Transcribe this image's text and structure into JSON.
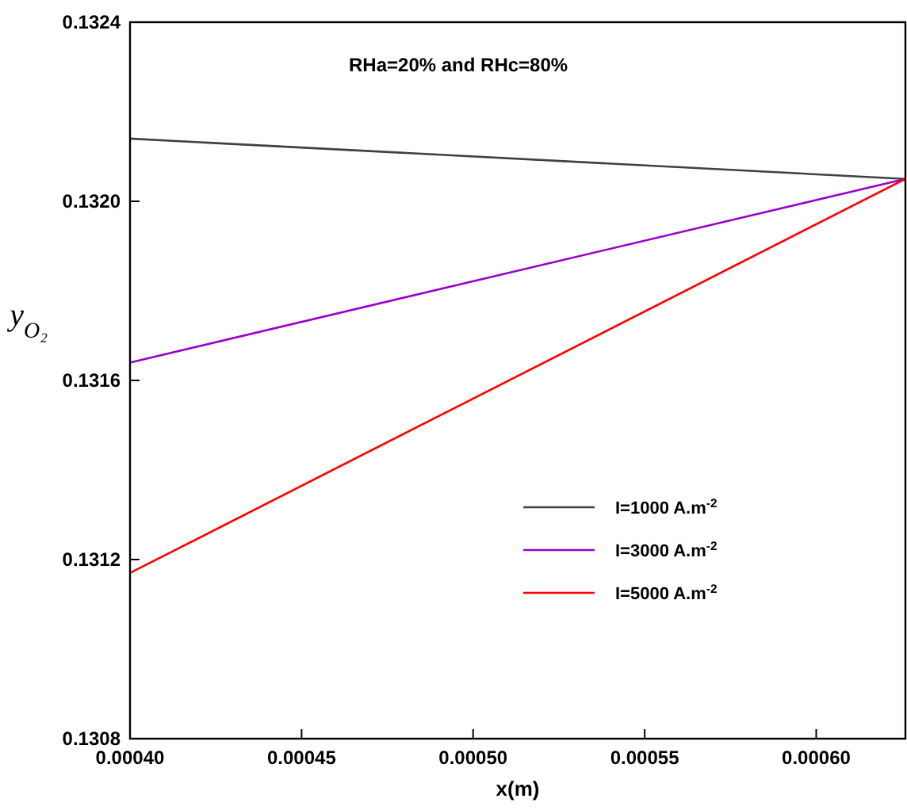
{
  "chart_data": {
    "type": "line",
    "xlabel": "x(m)",
    "ylabel": "y$_{O₂}$",
    "annotations": [
      "RHa=20% and RHc=80%"
    ],
    "x": [
      0.0004,
      0.000626
    ],
    "xlim": [
      0.0004,
      0.000626
    ],
    "xticks": [
      {
        "value": 0.0004,
        "label": "0.00040"
      },
      {
        "value": 0.00045,
        "label": "0.00045"
      },
      {
        "value": 0.0005,
        "label": "0.00050"
      },
      {
        "value": 0.00055,
        "label": "0.00055"
      },
      {
        "value": 0.0006,
        "label": "0.00060"
      }
    ],
    "ylim": [
      0.1308,
      0.1324
    ],
    "yticks": [
      0.1308,
      0.1312,
      0.1316,
      {
        "value": 0.132,
        "label": "0.1320"
      },
      0.1324
    ],
    "series": [
      {
        "name": "I=1000 A.m$^{-2}$",
        "color": "#404040",
        "values": [
          0.13214,
          0.13205
        ]
      },
      {
        "name": "I=3000 A.m$^{-2}$",
        "color": "#9900cc",
        "values": [
          0.13164,
          0.13205
        ]
      },
      {
        "name": "I=5000 A.m$^{-2}$",
        "color": "#ff0000",
        "values": [
          0.13117,
          0.13205
        ]
      }
    ],
    "legend": "right",
    "grid": false,
    "line_style": "solid",
    "marker": "none"
  }
}
